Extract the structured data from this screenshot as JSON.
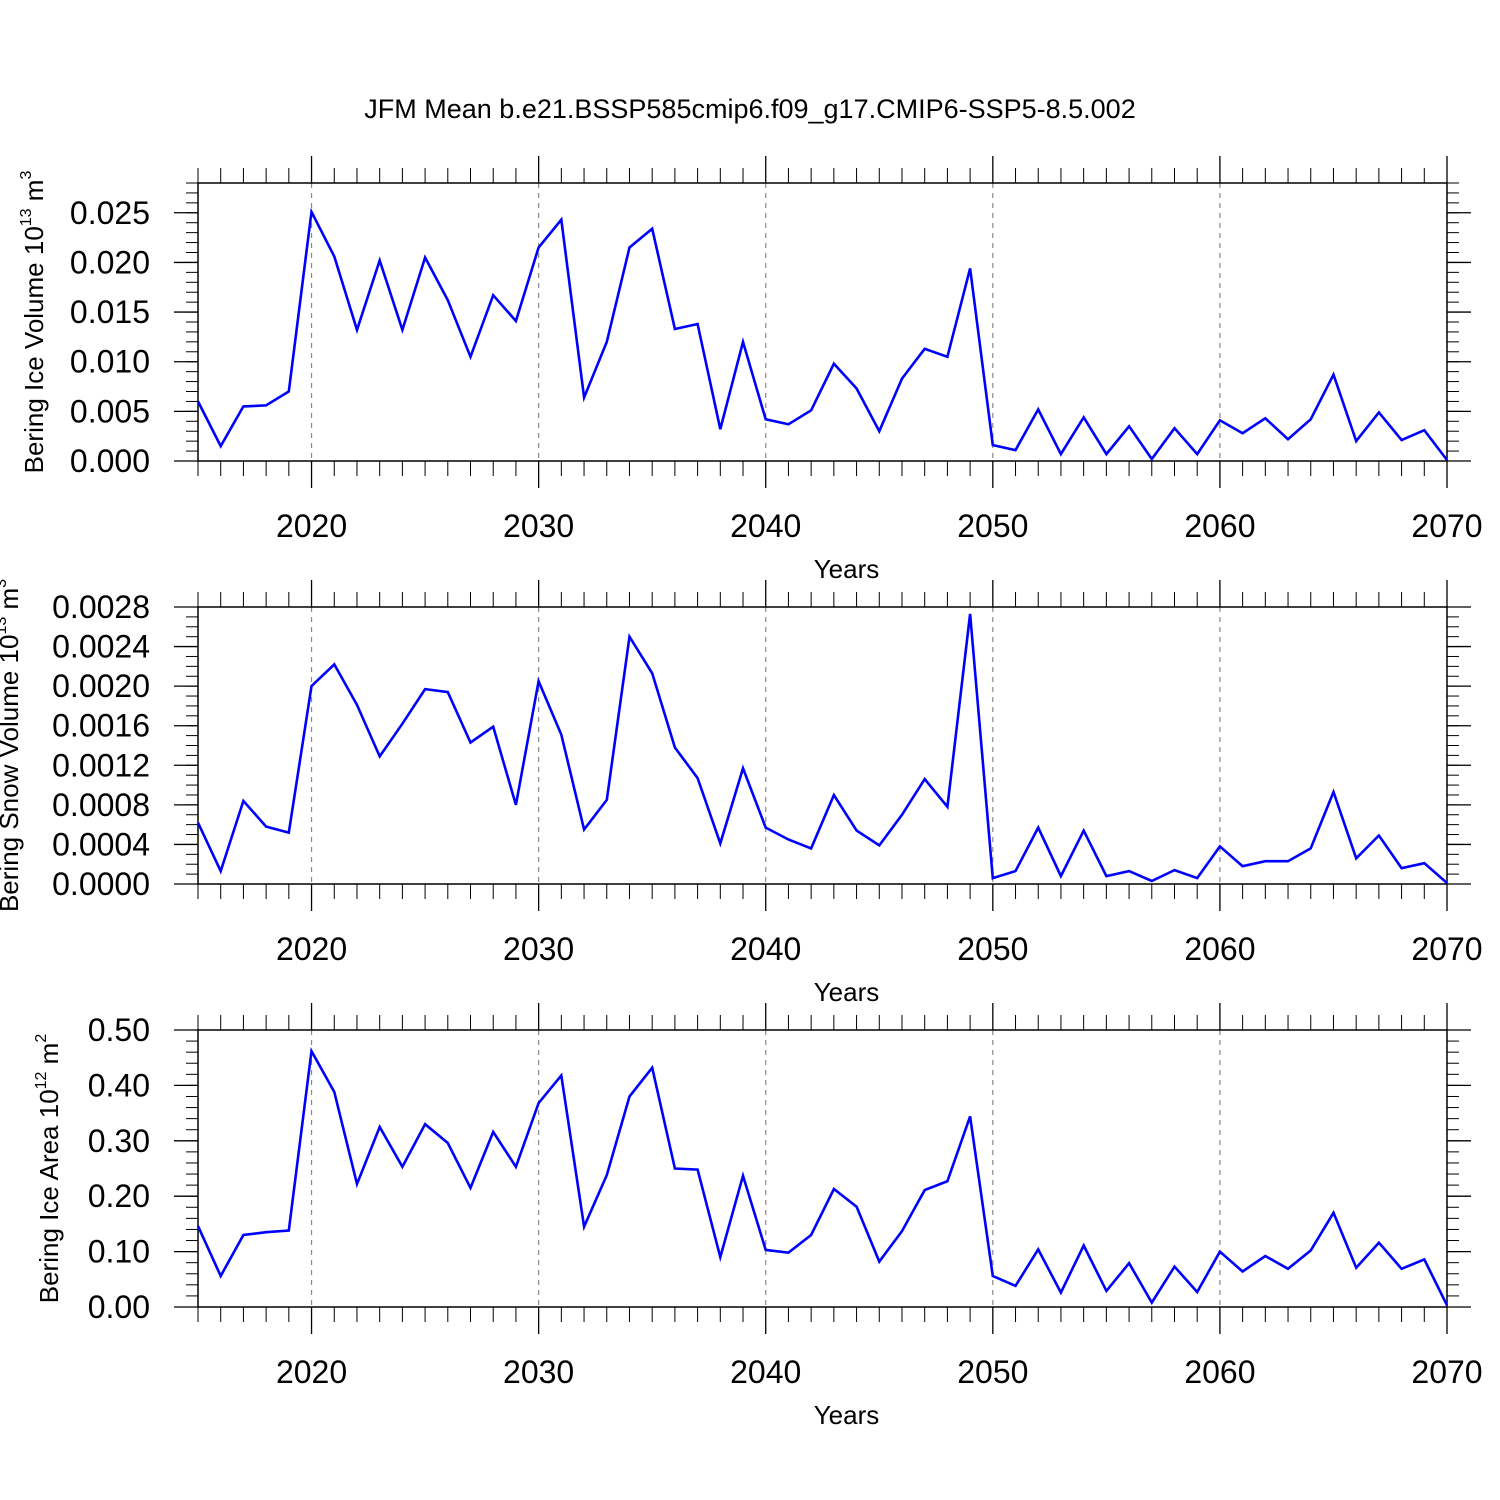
{
  "title": "JFM Mean b.e21.BSSP585cmip6.f09_g17.CMIP6-SSP5-8.5.002",
  "colors": {
    "line": "#0000ff",
    "grid": "#888888",
    "axis": "#000000"
  },
  "chart_data": [
    {
      "type": "line",
      "ylabel": {
        "main": "Bering Ice Volume 10",
        "exp": "13",
        "unit": " m",
        "unit_exp": "3"
      },
      "xlabel": "Years",
      "xlim": [
        2015,
        2070
      ],
      "ylim": [
        0,
        0.028
      ],
      "x_ticks": [
        2020,
        2030,
        2040,
        2050,
        2060,
        2070
      ],
      "x_tick_labels": [
        "2020",
        "2030",
        "2040",
        "2050",
        "2060",
        "2070"
      ],
      "y_ticks": [
        0,
        0.005,
        0.01,
        0.015,
        0.02,
        0.025
      ],
      "y_tick_labels": [
        "0.000",
        "0.005",
        "0.010",
        "0.015",
        "0.020",
        "0.025"
      ],
      "y_minor_step": 0.001,
      "grid": "dashed vertical at 2020, 2030, 2040, 2050, 2060",
      "series": [
        {
          "name": "Bering Ice Volume",
          "x": [
            2015,
            2016,
            2017,
            2018,
            2019,
            2020,
            2021,
            2022,
            2023,
            2024,
            2025,
            2026,
            2027,
            2028,
            2029,
            2030,
            2031,
            2032,
            2033,
            2034,
            2035,
            2036,
            2037,
            2038,
            2039,
            2040,
            2041,
            2042,
            2043,
            2044,
            2045,
            2046,
            2047,
            2048,
            2049,
            2050,
            2051,
            2052,
            2053,
            2054,
            2055,
            2056,
            2057,
            2058,
            2059,
            2060,
            2061,
            2062,
            2063,
            2064,
            2065,
            2066,
            2067,
            2068,
            2069,
            2070
          ],
          "values": [
            0.006,
            0.0015,
            0.0055,
            0.0056,
            0.007,
            0.0251,
            0.0206,
            0.0132,
            0.0202,
            0.0132,
            0.0205,
            0.0162,
            0.0105,
            0.0167,
            0.0141,
            0.0215,
            0.0243,
            0.0064,
            0.012,
            0.0215,
            0.0234,
            0.0133,
            0.0138,
            0.0032,
            0.012,
            0.0042,
            0.0037,
            0.0051,
            0.0098,
            0.0073,
            0.003,
            0.0083,
            0.0113,
            0.0105,
            0.0194,
            0.0016,
            0.0011,
            0.0052,
            0.0007,
            0.0044,
            0.0007,
            0.0035,
            0.0002,
            0.0033,
            0.0007,
            0.0041,
            0.0028,
            0.0043,
            0.0022,
            0.0042,
            0.0087,
            0.002,
            0.0049,
            0.0021,
            0.0031,
            0.0001
          ]
        }
      ]
    },
    {
      "type": "line",
      "ylabel": {
        "main": "Bering Snow Volume 10",
        "exp": "13",
        "unit": " m",
        "unit_exp": "3"
      },
      "xlabel": "Years",
      "xlim": [
        2015,
        2070
      ],
      "ylim": [
        0,
        0.0028
      ],
      "x_ticks": [
        2020,
        2030,
        2040,
        2050,
        2060,
        2070
      ],
      "x_tick_labels": [
        "2020",
        "2030",
        "2040",
        "2050",
        "2060",
        "2070"
      ],
      "y_ticks": [
        0,
        0.0004,
        0.0008,
        0.0012,
        0.0016,
        0.002,
        0.0024,
        0.0028
      ],
      "y_tick_labels": [
        "0.0000",
        "0.0004",
        "0.0008",
        "0.0012",
        "0.0016",
        "0.0020",
        "0.0024",
        "0.0028"
      ],
      "y_minor_step": 0.0001,
      "grid": "dashed vertical at 2020, 2030, 2040, 2050, 2060",
      "series": [
        {
          "name": "Bering Snow Volume",
          "x": [
            2015,
            2016,
            2017,
            2018,
            2019,
            2020,
            2021,
            2022,
            2023,
            2024,
            2025,
            2026,
            2027,
            2028,
            2029,
            2030,
            2031,
            2032,
            2033,
            2034,
            2035,
            2036,
            2037,
            2038,
            2039,
            2040,
            2041,
            2042,
            2043,
            2044,
            2045,
            2046,
            2047,
            2048,
            2049,
            2050,
            2051,
            2052,
            2053,
            2054,
            2055,
            2056,
            2057,
            2058,
            2059,
            2060,
            2061,
            2062,
            2063,
            2064,
            2065,
            2066,
            2067,
            2068,
            2069,
            2070
          ],
          "values": [
            0.00062,
            0.00013,
            0.00084,
            0.00058,
            0.00052,
            0.002,
            0.00222,
            0.00181,
            0.00129,
            0.00162,
            0.00197,
            0.00194,
            0.00143,
            0.00159,
            0.0008,
            0.00205,
            0.00151,
            0.00055,
            0.00085,
            0.0025,
            0.00213,
            0.00138,
            0.00107,
            0.00041,
            0.00117,
            0.00057,
            0.00045,
            0.00036,
            0.0009,
            0.00054,
            0.00039,
            0.0007,
            0.00106,
            0.00078,
            0.00273,
            6e-05,
            0.00013,
            0.00057,
            8e-05,
            0.00054,
            8e-05,
            0.00013,
            3e-05,
            0.00014,
            6e-05,
            0.00038,
            0.00018,
            0.00023,
            0.00023,
            0.00036,
            0.00093,
            0.00026,
            0.00049,
            0.00016,
            0.00021,
            1e-05
          ]
        }
      ]
    },
    {
      "type": "line",
      "ylabel": {
        "main": "Bering Ice Area 10",
        "exp": "12",
        "unit": " m",
        "unit_exp": "2"
      },
      "xlabel": "Years",
      "xlim": [
        2015,
        2070
      ],
      "ylim": [
        0,
        0.5
      ],
      "x_ticks": [
        2020,
        2030,
        2040,
        2050,
        2060,
        2070
      ],
      "x_tick_labels": [
        "2020",
        "2030",
        "2040",
        "2050",
        "2060",
        "2070"
      ],
      "y_ticks": [
        0,
        0.1,
        0.2,
        0.3,
        0.4,
        0.5
      ],
      "y_tick_labels": [
        "0.00",
        "0.10",
        "0.20",
        "0.30",
        "0.40",
        "0.50"
      ],
      "y_minor_step": 0.02,
      "grid": "dashed vertical at 2020, 2030, 2040, 2050, 2060",
      "series": [
        {
          "name": "Bering Ice Area",
          "x": [
            2015,
            2016,
            2017,
            2018,
            2019,
            2020,
            2021,
            2022,
            2023,
            2024,
            2025,
            2026,
            2027,
            2028,
            2029,
            2030,
            2031,
            2032,
            2033,
            2034,
            2035,
            2036,
            2037,
            2038,
            2039,
            2040,
            2041,
            2042,
            2043,
            2044,
            2045,
            2046,
            2047,
            2048,
            2049,
            2050,
            2051,
            2052,
            2053,
            2054,
            2055,
            2056,
            2057,
            2058,
            2059,
            2060,
            2061,
            2062,
            2063,
            2064,
            2065,
            2066,
            2067,
            2068,
            2069,
            2070
          ],
          "values": [
            0.146,
            0.056,
            0.13,
            0.135,
            0.138,
            0.462,
            0.388,
            0.222,
            0.325,
            0.253,
            0.33,
            0.296,
            0.215,
            0.316,
            0.253,
            0.368,
            0.418,
            0.145,
            0.238,
            0.38,
            0.432,
            0.25,
            0.248,
            0.09,
            0.237,
            0.103,
            0.098,
            0.13,
            0.213,
            0.181,
            0.082,
            0.137,
            0.211,
            0.227,
            0.344,
            0.056,
            0.038,
            0.104,
            0.026,
            0.111,
            0.029,
            0.079,
            0.008,
            0.073,
            0.027,
            0.1,
            0.064,
            0.092,
            0.069,
            0.102,
            0.17,
            0.071,
            0.116,
            0.069,
            0.086,
            0.003
          ]
        }
      ]
    }
  ]
}
